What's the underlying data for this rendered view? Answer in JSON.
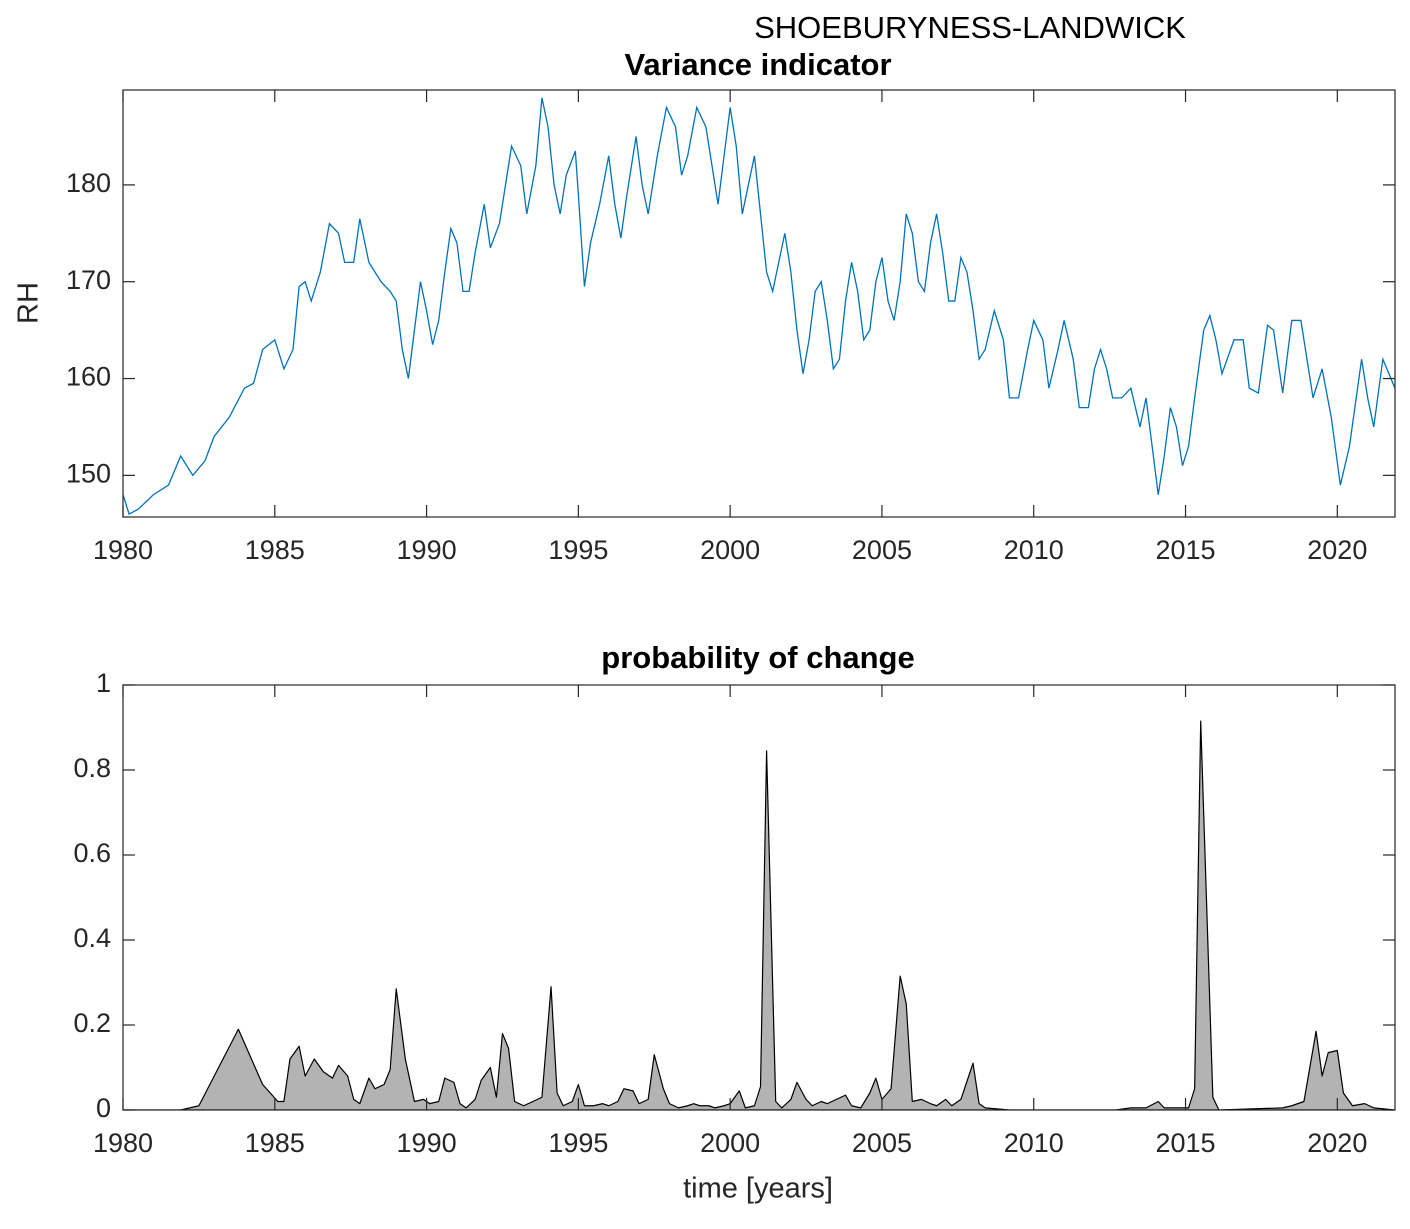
{
  "suptitle": "SHOEBURYNESS-LANDWICK",
  "chart_data": [
    {
      "type": "line",
      "title": "Variance indicator",
      "ylabel": "RH",
      "color": "#0072bd",
      "xlim": [
        1980,
        2021.9
      ],
      "ylim": [
        145.7,
        189.8
      ],
      "xticks": [
        1980,
        1985,
        1990,
        1995,
        2000,
        2005,
        2010,
        2015,
        2020
      ],
      "yticks": [
        150,
        160,
        170,
        180
      ],
      "x": [
        1980.0,
        1980.2,
        1980.5,
        1981,
        1981.5,
        1981.9,
        1982.3,
        1982.7,
        1983,
        1983.5,
        1984,
        1984.3,
        1984.6,
        1985,
        1985.3,
        1985.6,
        1985.8,
        1986,
        1986.2,
        1986.5,
        1986.8,
        1987.1,
        1987.3,
        1987.6,
        1987.8,
        1988.1,
        1988.5,
        1988.8,
        1989,
        1989.2,
        1989.4,
        1989.6,
        1989.8,
        1990,
        1990.2,
        1990.4,
        1990.6,
        1990.8,
        1991,
        1991.2,
        1991.4,
        1991.6,
        1991.9,
        1992.1,
        1992.4,
        1992.6,
        1992.8,
        1993.1,
        1993.3,
        1993.6,
        1993.8,
        1994.0,
        1994.2,
        1994.4,
        1994.6,
        1994.9,
        1995.0,
        1995.2,
        1995.4,
        1995.7,
        1996.0,
        1996.2,
        1996.4,
        1996.6,
        1996.9,
        1997.1,
        1997.3,
        1997.6,
        1997.9,
        1998.2,
        1998.4,
        1998.6,
        1998.9,
        1999.2,
        1999.4,
        1999.6,
        1999.8,
        2000,
        2000.2,
        2000.4,
        2000.6,
        2000.8,
        2001.0,
        2001.2,
        2001.4,
        2001.6,
        2001.8,
        2002,
        2002.2,
        2002.4,
        2002.6,
        2002.8,
        2003,
        2003.2,
        2003.4,
        2003.6,
        2003.8,
        2004,
        2004.2,
        2004.4,
        2004.6,
        2004.8,
        2005,
        2005.2,
        2005.4,
        2005.6,
        2005.8,
        2006.0,
        2006.2,
        2006.4,
        2006.6,
        2006.8,
        2007,
        2007.2,
        2007.4,
        2007.6,
        2007.8,
        2008,
        2008.2,
        2008.4,
        2008.7,
        2009,
        2009.2,
        2009.5,
        2009.8,
        2010,
        2010.3,
        2010.5,
        2010.8,
        2011,
        2011.3,
        2011.5,
        2011.8,
        2012,
        2012.2,
        2012.4,
        2012.6,
        2012.9,
        2013.2,
        2013.5,
        2013.7,
        2013.9,
        2014.1,
        2014.3,
        2014.5,
        2014.7,
        2014.9,
        2015.1,
        2015.3,
        2015.6,
        2015.8,
        2016,
        2016.2,
        2016.6,
        2016.9,
        2017.1,
        2017.4,
        2017.7,
        2017.9,
        2018.2,
        2018.5,
        2018.8,
        2019.2,
        2019.5,
        2019.8,
        2020.1,
        2020.4,
        2020.8,
        2021.0,
        2021.2,
        2021.5,
        2021.7,
        2021.9
      ],
      "values": [
        148,
        146,
        146.5,
        148,
        149,
        152,
        150,
        151.5,
        154,
        156,
        159,
        159.5,
        163,
        164,
        161,
        163,
        169.5,
        170,
        168,
        171,
        176,
        175,
        172,
        172,
        176.5,
        172,
        170,
        169,
        168,
        163,
        160,
        165,
        170,
        167,
        163.5,
        166,
        171,
        175.5,
        174,
        169,
        169,
        173,
        178,
        173.5,
        176,
        180,
        184,
        182,
        177,
        182,
        189,
        186,
        180,
        177,
        181,
        183.5,
        179,
        169.5,
        174,
        178,
        183,
        178,
        174.5,
        179,
        185,
        180,
        177,
        183,
        188,
        186,
        181,
        183,
        188,
        186,
        182,
        178,
        183,
        188,
        184,
        177,
        180,
        183,
        177,
        171,
        169,
        172,
        175,
        171,
        165,
        160.5,
        164,
        169,
        170,
        166,
        161,
        162,
        168,
        172,
        169,
        164,
        165,
        170,
        172.5,
        168,
        166,
        170,
        177,
        175,
        170,
        169,
        174,
        177,
        173,
        168,
        168,
        172.5,
        171,
        167,
        162,
        163,
        167,
        164,
        158,
        158,
        163,
        166,
        164,
        159,
        163,
        166,
        162,
        157,
        157,
        161,
        163,
        161,
        158,
        158,
        159,
        155,
        158,
        153,
        148,
        152,
        157,
        155,
        151,
        153,
        158,
        165,
        166.5,
        164,
        160.5,
        164,
        164,
        159,
        158.5,
        165.5,
        165,
        158.5,
        166,
        166,
        158,
        161,
        156,
        149,
        153,
        162,
        158,
        155,
        162,
        160.5,
        159
      ]
    },
    {
      "type": "area",
      "title": "probability of change",
      "xlabel": "time [years]",
      "color": "#b3b3b3",
      "xlim": [
        1980,
        2021.9
      ],
      "ylim": [
        0,
        1
      ],
      "xticks": [
        1980,
        1985,
        1990,
        1995,
        2000,
        2005,
        2010,
        2015,
        2020
      ],
      "yticks": [
        0,
        0.2,
        0.4,
        0.6,
        0.8,
        1
      ],
      "x": [
        1980,
        1981.9,
        1982.5,
        1983.8,
        1984.6,
        1985.1,
        1985.3,
        1985.5,
        1985.8,
        1986,
        1986.3,
        1986.6,
        1986.9,
        1987.1,
        1987.4,
        1987.6,
        1987.8,
        1988.1,
        1988.3,
        1988.6,
        1988.8,
        1989,
        1989.3,
        1989.6,
        1989.9,
        1990.1,
        1990.4,
        1990.6,
        1990.9,
        1991.1,
        1991.3,
        1991.6,
        1991.8,
        1992.1,
        1992.3,
        1992.5,
        1992.7,
        1992.9,
        1993.2,
        1993.5,
        1993.8,
        1994.1,
        1994.3,
        1994.5,
        1994.8,
        1995,
        1995.2,
        1995.5,
        1995.8,
        1996,
        1996.3,
        1996.5,
        1996.8,
        1997,
        1997.3,
        1997.5,
        1997.8,
        1998,
        1998.3,
        1998.6,
        1998.8,
        1999,
        1999.3,
        1999.5,
        1999.8,
        2000,
        2000.3,
        2000.5,
        2000.8,
        2001,
        2001.2,
        2001.5,
        2001.7,
        2002,
        2002.2,
        2002.5,
        2002.7,
        2003,
        2003.2,
        2003.5,
        2003.8,
        2004,
        2004.3,
        2004.6,
        2004.8,
        2005,
        2005.3,
        2005.6,
        2005.8,
        2006,
        2006.3,
        2006.6,
        2006.8,
        2007.1,
        2007.3,
        2007.6,
        2008.0,
        2008.2,
        2008.4,
        2009.2,
        2012.7,
        2013.2,
        2013.7,
        2014.1,
        2014.3,
        2015.1,
        2015.3,
        2015.5,
        2015.9,
        2016.1,
        2018.2,
        2018.5,
        2018.9,
        2019.3,
        2019.5,
        2019.7,
        2020,
        2020.2,
        2020.5,
        2020.9,
        2021.2,
        2021.9
      ],
      "values": [
        0,
        0,
        0.01,
        0.19,
        0.06,
        0.02,
        0.02,
        0.12,
        0.15,
        0.08,
        0.12,
        0.09,
        0.075,
        0.105,
        0.08,
        0.025,
        0.015,
        0.075,
        0.05,
        0.06,
        0.095,
        0.285,
        0.12,
        0.02,
        0.025,
        0.015,
        0.02,
        0.075,
        0.065,
        0.015,
        0.005,
        0.025,
        0.07,
        0.1,
        0.03,
        0.18,
        0.145,
        0.02,
        0.01,
        0.02,
        0.03,
        0.29,
        0.04,
        0.01,
        0.02,
        0.06,
        0.01,
        0.01,
        0.015,
        0.01,
        0.02,
        0.05,
        0.045,
        0.015,
        0.025,
        0.13,
        0.05,
        0.015,
        0.005,
        0.01,
        0.015,
        0.01,
        0.01,
        0.005,
        0.01,
        0.015,
        0.045,
        0.005,
        0.01,
        0.055,
        0.845,
        0.02,
        0.005,
        0.025,
        0.065,
        0.025,
        0.01,
        0.02,
        0.015,
        0.025,
        0.035,
        0.01,
        0.005,
        0.04,
        0.075,
        0.025,
        0.05,
        0.315,
        0.25,
        0.02,
        0.025,
        0.015,
        0.01,
        0.025,
        0.01,
        0.025,
        0.11,
        0.015,
        0.005,
        0,
        0,
        0.005,
        0.005,
        0.02,
        0.005,
        0.005,
        0.05,
        0.915,
        0.03,
        0,
        0.005,
        0.01,
        0.02,
        0.185,
        0.08,
        0.135,
        0.14,
        0.04,
        0.01,
        0.015,
        0.005,
        0
      ]
    }
  ]
}
